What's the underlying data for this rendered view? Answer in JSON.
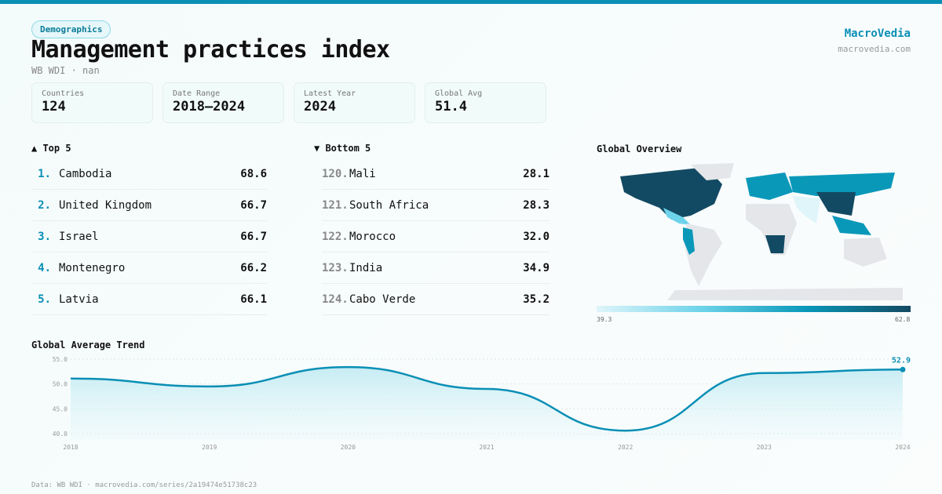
{
  "header": {
    "tag": "Demographics",
    "title": "Management practices index",
    "subtitle": "WB WDI · nan",
    "brand": "MacroVedia",
    "brand_url": "macrovedia.com"
  },
  "stats": [
    {
      "label": "Countries",
      "value": "124"
    },
    {
      "label": "Date Range",
      "value": "2018–2024"
    },
    {
      "label": "Latest Year",
      "value": "2024"
    },
    {
      "label": "Global Avg",
      "value": "51.4"
    }
  ],
  "top5": {
    "title": "▲ Top 5",
    "items": [
      {
        "rank": "1.",
        "name": "Cambodia",
        "value": "68.6"
      },
      {
        "rank": "2.",
        "name": "United Kingdom",
        "value": "66.7"
      },
      {
        "rank": "3.",
        "name": "Israel",
        "value": "66.7"
      },
      {
        "rank": "4.",
        "name": "Montenegro",
        "value": "66.2"
      },
      {
        "rank": "5.",
        "name": "Latvia",
        "value": "66.1"
      }
    ]
  },
  "bottom5": {
    "title": "▼ Bottom 5",
    "items": [
      {
        "rank": "120.",
        "name": "Mali",
        "value": "28.1"
      },
      {
        "rank": "121.",
        "name": "South Africa",
        "value": "28.3"
      },
      {
        "rank": "122.",
        "name": "Morocco",
        "value": "32.0"
      },
      {
        "rank": "123.",
        "name": "India",
        "value": "34.9"
      },
      {
        "rank": "124.",
        "name": "Cabo Verde",
        "value": "35.2"
      }
    ]
  },
  "map": {
    "title": "Global Overview",
    "legend_min": "39.3",
    "legend_max": "62.8",
    "colors": [
      "#dff5fa",
      "#6dd3ea",
      "#0a98b9",
      "#134a63"
    ],
    "nodata": "#e4e6ea"
  },
  "chart_data": {
    "type": "area",
    "title": "Global Average Trend",
    "x": [
      "2018",
      "2019",
      "2020",
      "2021",
      "2022",
      "2023",
      "2024"
    ],
    "values": [
      51.1,
      49.5,
      53.4,
      49.0,
      40.6,
      52.2,
      52.9
    ],
    "yticks": [
      "55.0",
      "50.0",
      "45.0",
      "40.0"
    ],
    "ylim": [
      40,
      55
    ],
    "grid": true,
    "last_label": "52.9",
    "color": "#0a8fb5"
  },
  "footer": "Data: WB WDI · macrovedia.com/series/2a19474e51738c23"
}
